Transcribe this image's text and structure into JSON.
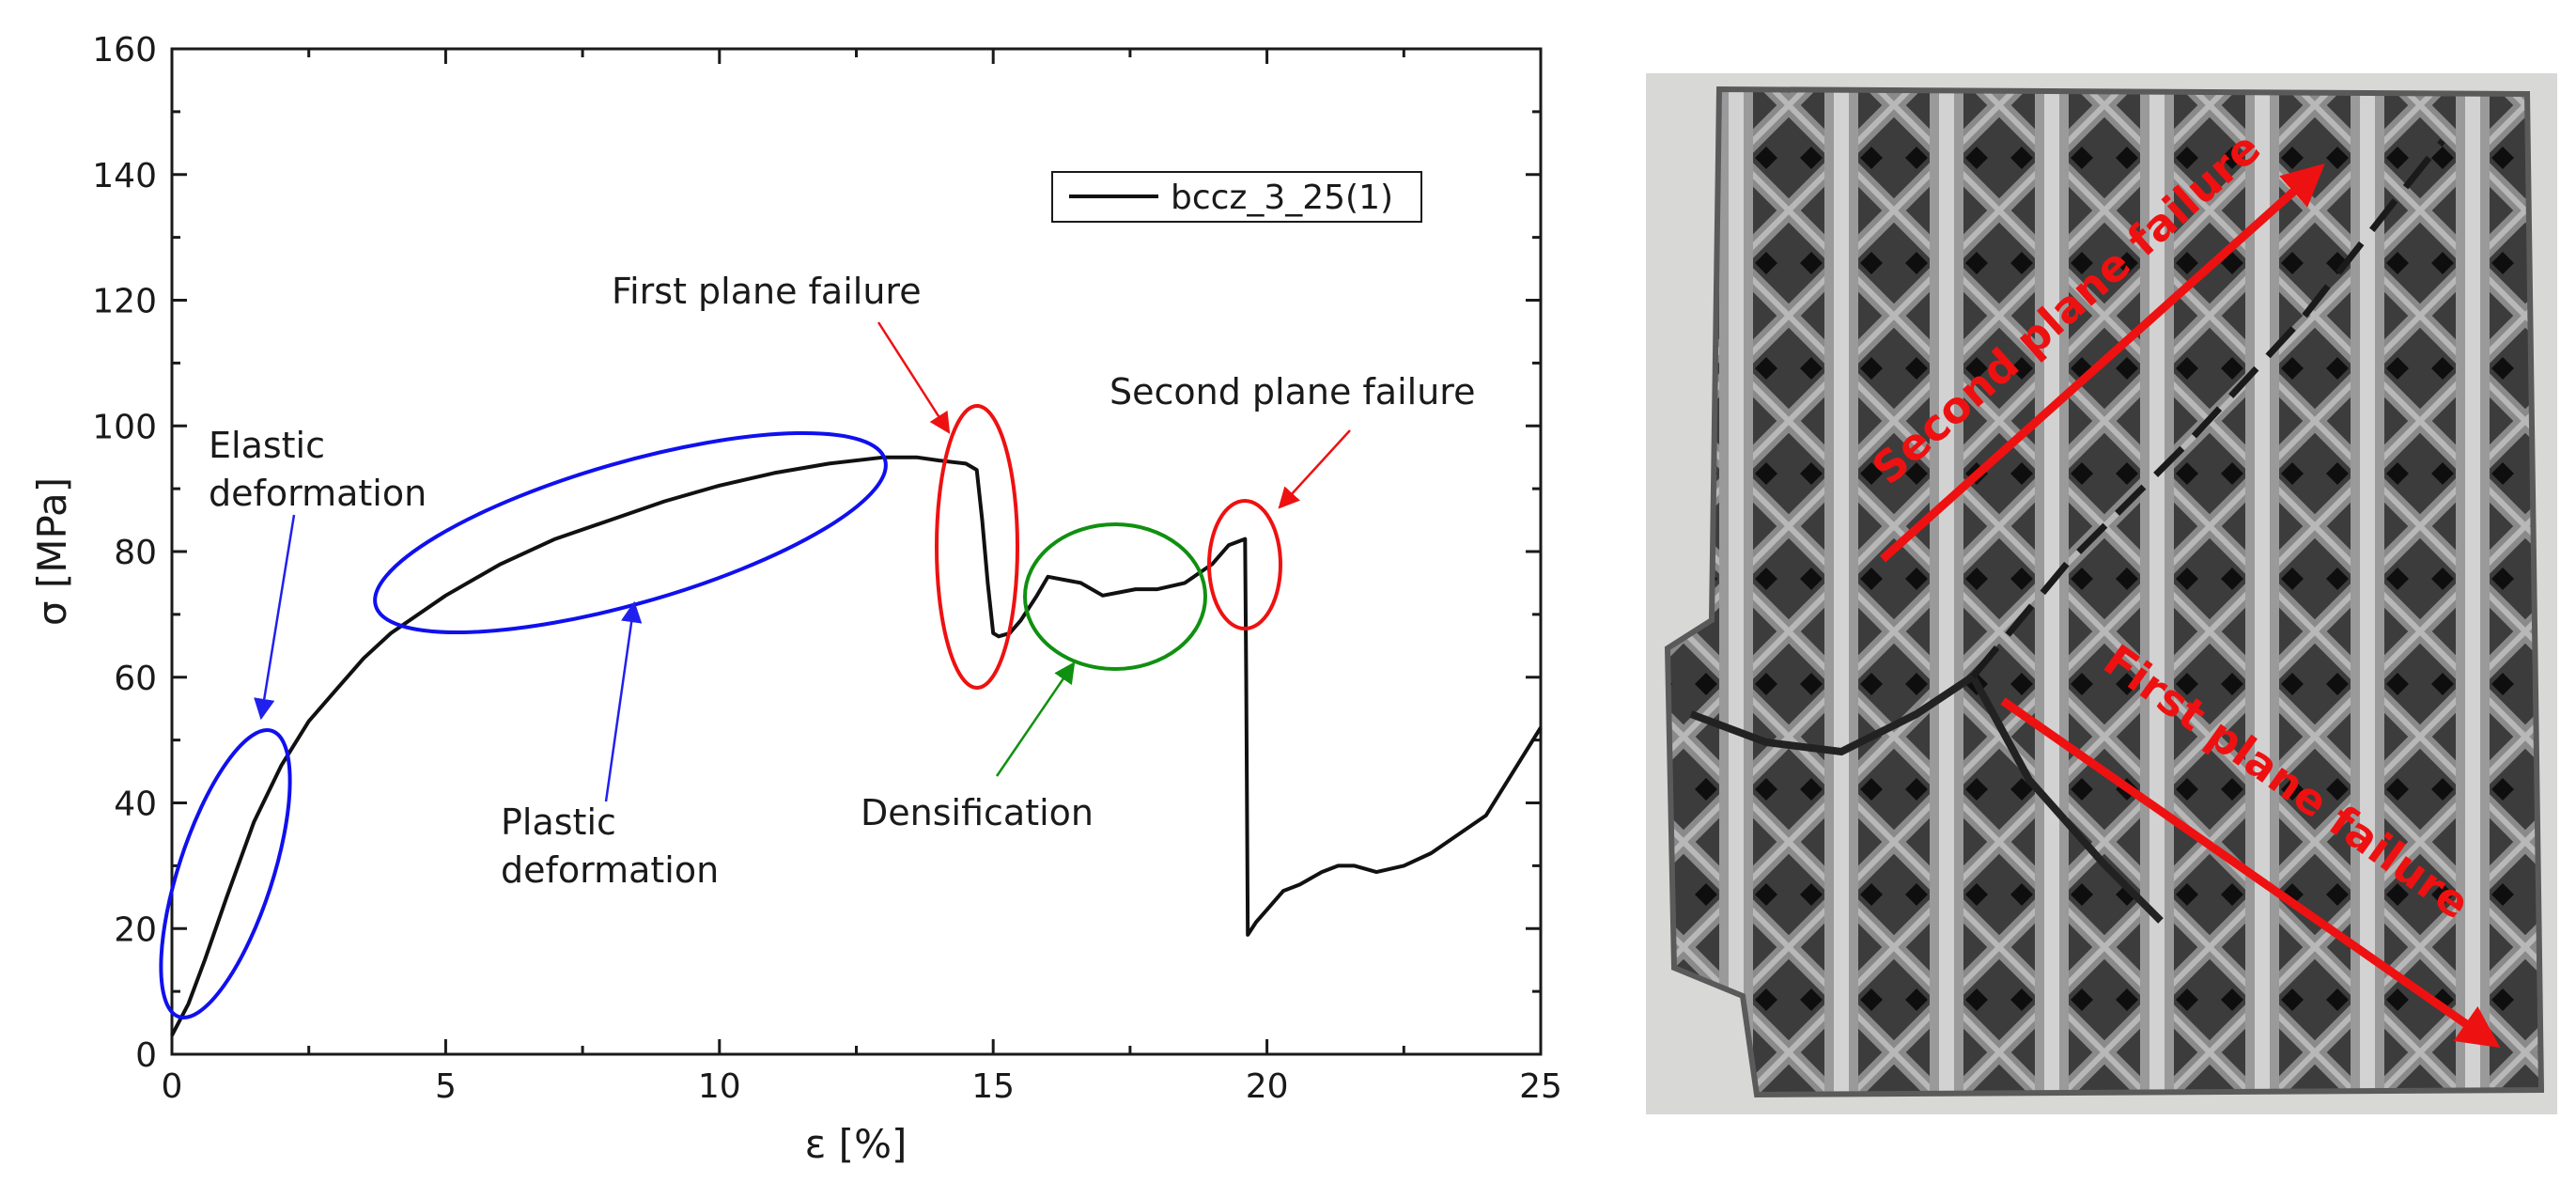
{
  "chart_data": {
    "type": "line",
    "xlabel": "ε [%]",
    "ylabel": "σ [MPa]",
    "xlim": [
      0,
      25
    ],
    "ylim": [
      0,
      160
    ],
    "x_ticks": [
      0,
      5,
      10,
      15,
      20,
      25
    ],
    "y_ticks": [
      0,
      20,
      40,
      60,
      80,
      100,
      120,
      140,
      160
    ],
    "grid": false,
    "legend": {
      "position": "top-right"
    },
    "series": [
      {
        "name": "bccz_3_25(1)",
        "color": "#111111",
        "x": [
          0,
          0.3,
          0.6,
          1.0,
          1.5,
          2.0,
          2.5,
          3.0,
          3.5,
          4.0,
          5.0,
          6.0,
          7.0,
          8.0,
          9.0,
          10.0,
          11.0,
          12.0,
          13.0,
          13.6,
          14.0,
          14.5,
          14.7,
          14.8,
          14.9,
          15.0,
          15.1,
          15.3,
          15.5,
          15.8,
          16.0,
          16.3,
          16.6,
          17.0,
          17.3,
          17.6,
          18.0,
          18.5,
          19.0,
          19.3,
          19.6,
          19.62,
          19.65,
          19.8,
          20.0,
          20.3,
          20.6,
          21.0,
          21.3,
          21.6,
          22.0,
          22.5,
          23.0,
          23.5,
          24.0,
          24.5,
          25.0
        ],
        "y": [
          3,
          8,
          15,
          25,
          37,
          46,
          53,
          58,
          63,
          67,
          73,
          78,
          82,
          85,
          88,
          90.5,
          92.5,
          94,
          95,
          95,
          94.5,
          94,
          93,
          85,
          75,
          67,
          66.5,
          67,
          69,
          73,
          76,
          75.5,
          75,
          73,
          73.5,
          74,
          74,
          75,
          78,
          81,
          82,
          60,
          19,
          21,
          23,
          26,
          27,
          29,
          30,
          30,
          29,
          30,
          32,
          35,
          38,
          45,
          52
        ]
      }
    ],
    "annotations": [
      {
        "text": "Elastic\ndeformation",
        "color": "#1a1a1a",
        "ellipse_color": "#1010ee",
        "arrow_color": "#2020ee"
      },
      {
        "text": "Plastic\ndeformation",
        "color": "#1a1a1a",
        "ellipse_color": "#1010ee",
        "arrow_color": "#2020ee"
      },
      {
        "text": "First plane failure",
        "color": "#1a1a1a",
        "ellipse_color": "#ee1111",
        "arrow_color": "#ee1111"
      },
      {
        "text": "Densification",
        "color": "#1a1a1a",
        "ellipse_color": "#109010",
        "arrow_color": "#109010"
      },
      {
        "text": "Second plane failure",
        "color": "#1a1a1a",
        "ellipse_color": "#ee1111",
        "arrow_color": "#ee1111"
      }
    ]
  },
  "photo": {
    "labels": [
      "Second plane failure",
      "First plane failure"
    ],
    "arrow_color": "#ee1111"
  }
}
